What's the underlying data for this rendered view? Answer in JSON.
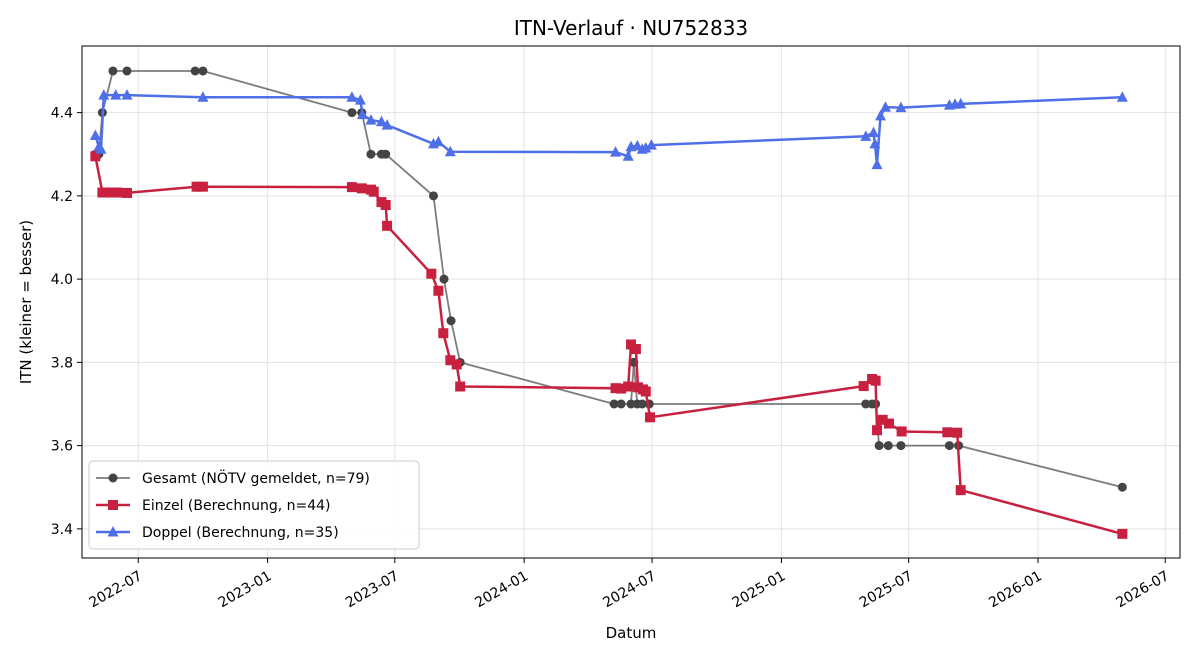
{
  "chart_data": {
    "type": "line",
    "title": "ITN-Verlauf · NU752833",
    "xlabel": "Datum",
    "ylabel": "ITN  (kleiner = besser)",
    "xlim": [
      "2022-04-12",
      "2026-07-22"
    ],
    "ylim": [
      3.33,
      4.56
    ],
    "x_ticks": [
      "2022-07-01",
      "2023-01-01",
      "2023-07-01",
      "2024-01-01",
      "2024-07-01",
      "2025-01-01",
      "2025-07-01",
      "2026-01-01",
      "2026-07-01"
    ],
    "x_tick_labels": [
      "2022-07",
      "2023-01",
      "2023-07",
      "2024-01",
      "2024-07",
      "2025-01",
      "2025-07",
      "2026-01",
      "2026-07"
    ],
    "y_ticks": [
      3.4,
      3.6,
      3.8,
      4.0,
      4.2,
      4.4
    ],
    "y_tick_labels": [
      "3.4",
      "3.6",
      "3.8",
      "4.0",
      "4.2",
      "4.4"
    ],
    "grid": true,
    "legend_position": "lower-left",
    "series": [
      {
        "name": "Gesamt (NÖTV gemeldet, n=79)",
        "color": "#444444",
        "marker": "circle",
        "points": [
          [
            "2022-05-01",
            4.3
          ],
          [
            "2022-05-06",
            4.3
          ],
          [
            "2022-05-11",
            4.4
          ],
          [
            "2022-05-26",
            4.5
          ],
          [
            "2022-06-15",
            4.5
          ],
          [
            "2022-09-20",
            4.5
          ],
          [
            "2022-10-01",
            4.5
          ],
          [
            "2023-05-01",
            4.4
          ],
          [
            "2023-05-15",
            4.4
          ],
          [
            "2023-05-28",
            4.3
          ],
          [
            "2023-06-12",
            4.3
          ],
          [
            "2023-06-18",
            4.3
          ],
          [
            "2023-08-25",
            4.2
          ],
          [
            "2023-09-09",
            4.0
          ],
          [
            "2023-09-19",
            3.9
          ],
          [
            "2023-10-02",
            3.8
          ],
          [
            "2024-05-08",
            3.7
          ],
          [
            "2024-05-18",
            3.7
          ],
          [
            "2024-06-01",
            3.7
          ],
          [
            "2024-06-05",
            3.8
          ],
          [
            "2024-06-10",
            3.7
          ],
          [
            "2024-06-17",
            3.7
          ],
          [
            "2024-06-27",
            3.7
          ],
          [
            "2025-05-01",
            3.7
          ],
          [
            "2025-05-10",
            3.7
          ],
          [
            "2025-05-15",
            3.7
          ],
          [
            "2025-05-20",
            3.6
          ],
          [
            "2025-06-02",
            3.6
          ],
          [
            "2025-06-20",
            3.6
          ],
          [
            "2025-08-28",
            3.6
          ],
          [
            "2025-09-10",
            3.6
          ],
          [
            "2026-05-01",
            3.5
          ]
        ]
      },
      {
        "name": "Einzel (Berechnung, n=44)",
        "color": "#c8203f",
        "marker": "square",
        "points": [
          [
            "2022-05-01",
            4.295
          ],
          [
            "2022-05-11",
            4.208
          ],
          [
            "2022-05-20",
            4.208
          ],
          [
            "2022-06-01",
            4.208
          ],
          [
            "2022-06-15",
            4.207
          ],
          [
            "2022-09-22",
            4.222
          ],
          [
            "2022-10-01",
            4.222
          ],
          [
            "2023-05-01",
            4.221
          ],
          [
            "2023-05-15",
            4.218
          ],
          [
            "2023-05-28",
            4.215
          ],
          [
            "2023-06-01",
            4.21
          ],
          [
            "2023-06-12",
            4.185
          ],
          [
            "2023-06-18",
            4.178
          ],
          [
            "2023-06-20",
            4.128
          ],
          [
            "2023-08-22",
            4.013
          ],
          [
            "2023-09-01",
            3.972
          ],
          [
            "2023-09-08",
            3.87
          ],
          [
            "2023-09-18",
            3.805
          ],
          [
            "2023-09-27",
            3.795
          ],
          [
            "2023-10-02",
            3.742
          ],
          [
            "2024-05-10",
            3.738
          ],
          [
            "2024-05-18",
            3.737
          ],
          [
            "2024-05-28",
            3.742
          ],
          [
            "2024-06-01",
            3.843
          ],
          [
            "2024-06-08",
            3.832
          ],
          [
            "2024-06-11",
            3.74
          ],
          [
            "2024-06-18",
            3.735
          ],
          [
            "2024-06-22",
            3.73
          ],
          [
            "2024-06-28",
            3.668
          ],
          [
            "2025-04-28",
            3.743
          ],
          [
            "2025-05-10",
            3.76
          ],
          [
            "2025-05-15",
            3.756
          ],
          [
            "2025-05-17",
            3.637
          ],
          [
            "2025-05-25",
            3.662
          ],
          [
            "2025-06-03",
            3.653
          ],
          [
            "2025-06-21",
            3.634
          ],
          [
            "2025-08-25",
            3.632
          ],
          [
            "2025-09-08",
            3.631
          ],
          [
            "2025-09-13",
            3.493
          ],
          [
            "2026-05-01",
            3.388
          ]
        ]
      },
      {
        "name": "Doppel (Berechnung, n=35)",
        "color": "#4f6fe8",
        "marker": "triangle",
        "points": [
          [
            "2022-05-01",
            4.345
          ],
          [
            "2022-05-06",
            4.318
          ],
          [
            "2022-05-09",
            4.312
          ],
          [
            "2022-05-13",
            4.442
          ],
          [
            "2022-05-30",
            4.442
          ],
          [
            "2022-06-15",
            4.442
          ],
          [
            "2022-10-01",
            4.437
          ],
          [
            "2023-05-01",
            4.437
          ],
          [
            "2023-05-13",
            4.43
          ],
          [
            "2023-05-16",
            4.395
          ],
          [
            "2023-05-28",
            4.382
          ],
          [
            "2023-06-12",
            4.378
          ],
          [
            "2023-06-20",
            4.37
          ],
          [
            "2023-08-25",
            4.325
          ],
          [
            "2023-09-01",
            4.33
          ],
          [
            "2023-09-18",
            4.306
          ],
          [
            "2024-05-10",
            4.305
          ],
          [
            "2024-05-28",
            4.295
          ],
          [
            "2024-06-01",
            4.318
          ],
          [
            "2024-06-10",
            4.32
          ],
          [
            "2024-06-17",
            4.312
          ],
          [
            "2024-06-22",
            4.315
          ],
          [
            "2024-06-30",
            4.322
          ],
          [
            "2025-05-01",
            4.343
          ],
          [
            "2025-05-12",
            4.352
          ],
          [
            "2025-05-14",
            4.325
          ],
          [
            "2025-05-17",
            4.275
          ],
          [
            "2025-05-22",
            4.392
          ],
          [
            "2025-05-29",
            4.413
          ],
          [
            "2025-06-20",
            4.412
          ],
          [
            "2025-08-28",
            4.418
          ],
          [
            "2025-09-05",
            4.42
          ],
          [
            "2025-09-13",
            4.421
          ],
          [
            "2026-05-01",
            4.437
          ]
        ]
      }
    ]
  }
}
